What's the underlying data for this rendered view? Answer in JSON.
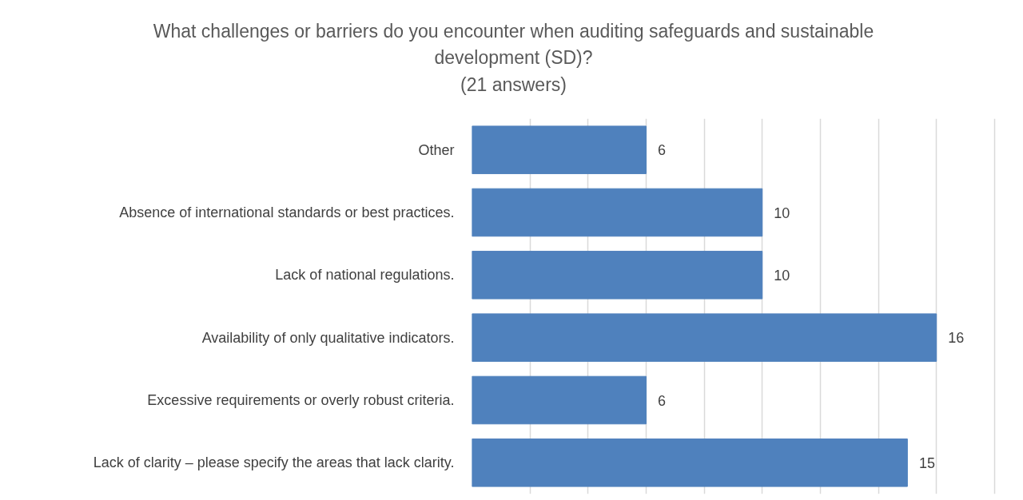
{
  "chart_data": {
    "type": "bar",
    "orientation": "horizontal",
    "title": "What challenges or barriers do you encounter when auditing safeguards and sustainable development (SD)?",
    "subtitle": "(21 answers)",
    "categories": [
      "Other",
      "Absence of international standards or best practices.",
      "Lack of national regulations.",
      "Availability of only qualitative indicators.",
      "Excessive requirements or overly robust criteria.",
      "Lack of clarity – please specify the areas that lack clarity."
    ],
    "values": [
      6,
      10,
      10,
      16,
      6,
      15
    ],
    "color": "#4f81bd",
    "grid": "x",
    "tick_labels": "y",
    "data_labels": true
  }
}
